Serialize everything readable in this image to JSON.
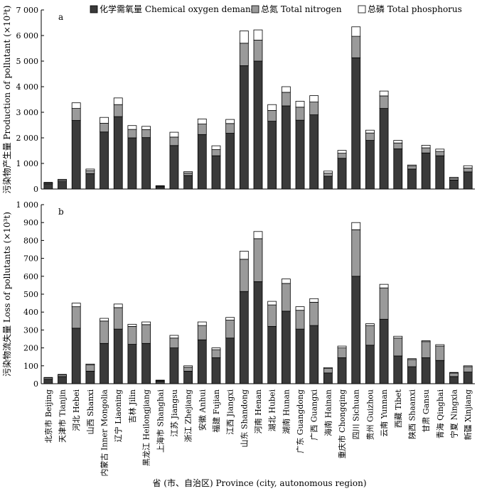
{
  "legend": {
    "cod": "化学需氧量 Chemical oxygen demand",
    "tn": "总氮 Total nitrogen",
    "tp": "总磷 Total phosphorus"
  },
  "colors": {
    "cod": "#3a3a3a",
    "tn": "#9a9a9a",
    "tp": "#ffffff",
    "stroke": "#000000"
  },
  "xlabel": "省 (市、自治区) Province (city, autonomous region)",
  "categories": [
    "北京市 Beijing",
    "天津市 Tianjin",
    "河北 Hebei",
    "山西 Shanxi",
    "内蒙古 Inner Mongolia",
    "辽宁 Liaoning",
    "吉林 Jilin",
    "黑龙江 Heilongjiang",
    "上海市 Shanghai",
    "江苏 Jiangsu",
    "浙江 Zhejiang",
    "安徽 Anhui",
    "福建 Fujian",
    "江西 Jiangxi",
    "山东 Shandong",
    "河南 Henan",
    "湖北 Hubei",
    "湖南 Hunan",
    "广东 Guangdong",
    "广西 Guangxi",
    "海南 Hainan",
    "重庆市 Chongqing",
    "四川 Sichuan",
    "贵州 Guizhou",
    "云南 Yunnan",
    "西藏 Tibet",
    "陕西 Shaanxi",
    "甘肃 Gansu",
    "青海 Qinghai",
    "宁夏 Ningxia",
    "新疆 Xinjiang"
  ],
  "chart_data": [
    {
      "type": "bar",
      "stacked": true,
      "panel_label": "a",
      "ylabel": "污染物产生量 Production of pollutant (×10³t)",
      "ylim": [
        0,
        7000
      ],
      "yticks": [
        0,
        1000,
        2000,
        3000,
        4000,
        5000,
        6000,
        7000
      ],
      "ytick_labels": [
        "0",
        "1 000",
        "2 000",
        "3 000",
        "4 000",
        "5 000",
        "6 000",
        "7 000"
      ],
      "legend_position": "top",
      "series": [
        {
          "name": "化学需氧量 Chemical oxygen demand",
          "values": [
            200,
            290,
            2680,
            600,
            2230,
            2830,
            2000,
            2010,
            80,
            1700,
            530,
            2130,
            1300,
            2180,
            4820,
            5000,
            2650,
            3250,
            2690,
            2900,
            500,
            1200,
            5130,
            1900,
            3150,
            1570,
            780,
            1410,
            1300,
            350,
            670
          ]
        },
        {
          "name": "总氮 Total nitrogen",
          "values": [
            40,
            60,
            470,
            120,
            340,
            470,
            330,
            310,
            30,
            330,
            100,
            410,
            240,
            380,
            880,
            820,
            420,
            530,
            510,
            500,
            120,
            200,
            840,
            290,
            490,
            230,
            120,
            200,
            170,
            70,
            150
          ]
        },
        {
          "name": "总磷 Total phosphorus",
          "values": [
            20,
            30,
            220,
            60,
            230,
            260,
            150,
            130,
            20,
            190,
            50,
            200,
            150,
            160,
            480,
            400,
            230,
            220,
            230,
            250,
            80,
            110,
            370,
            110,
            190,
            100,
            40,
            100,
            90,
            40,
            90
          ]
        }
      ]
    },
    {
      "type": "bar",
      "stacked": true,
      "panel_label": "b",
      "ylabel": "污染物流失量 Loss of pollutants (×10³t)",
      "ylim": [
        0,
        1000
      ],
      "yticks": [
        0,
        100,
        200,
        300,
        400,
        500,
        600,
        700,
        800,
        900,
        1000
      ],
      "ytick_labels": [
        "0",
        "100",
        "200",
        "300",
        "400",
        "500",
        "600",
        "700",
        "800",
        "900",
        "1 000"
      ],
      "series": [
        {
          "name": "化学需氧量 Chemical oxygen demand",
          "values": [
            25,
            40,
            310,
            70,
            225,
            305,
            220,
            225,
            15,
            200,
            70,
            245,
            145,
            255,
            515,
            570,
            320,
            405,
            305,
            325,
            60,
            145,
            600,
            215,
            360,
            155,
            95,
            145,
            130,
            40,
            65
          ]
        },
        {
          "name": "总氮 Total nitrogen",
          "values": [
            8,
            10,
            120,
            35,
            125,
            120,
            100,
            105,
            3,
            55,
            22,
            80,
            45,
            100,
            180,
            240,
            120,
            155,
            105,
            130,
            25,
            55,
            260,
            110,
            175,
            100,
            40,
            90,
            80,
            20,
            30
          ]
        },
        {
          "name": "总磷 Total phosphorus",
          "values": [
            2,
            2,
            20,
            5,
            15,
            20,
            12,
            15,
            2,
            15,
            8,
            20,
            10,
            15,
            45,
            40,
            20,
            25,
            20,
            20,
            5,
            10,
            40,
            10,
            20,
            10,
            5,
            5,
            8,
            3,
            5
          ]
        }
      ]
    }
  ]
}
